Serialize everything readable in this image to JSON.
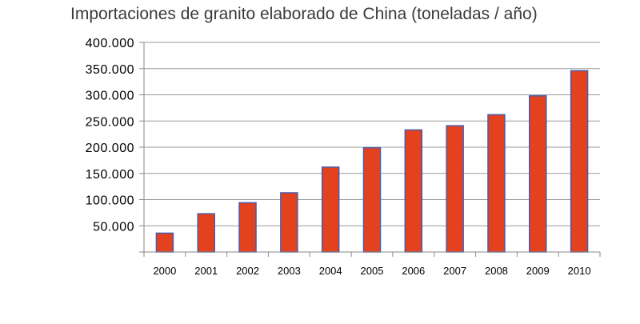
{
  "chart_data": {
    "type": "bar",
    "title": "Importaciones de granito elaborado de China (toneladas / año)",
    "xlabel": "",
    "ylabel": "",
    "categories": [
      "2000",
      "2001",
      "2002",
      "2003",
      "2004",
      "2005",
      "2006",
      "2007",
      "2008",
      "2009",
      "2010"
    ],
    "values": [
      36000,
      73000,
      94000,
      113000,
      162000,
      199000,
      233000,
      241000,
      262000,
      298000,
      346000
    ],
    "ylim": [
      0,
      400000
    ],
    "yticks": [
      50000,
      100000,
      150000,
      200000,
      250000,
      300000,
      350000,
      400000
    ],
    "ytick_labels": [
      "50.000",
      "100.000",
      "150.000",
      "200.000",
      "250.000",
      "300.000",
      "350.000",
      "400.000"
    ],
    "grid": true,
    "legend": "none",
    "colors": {
      "bar_fill": "#e4411f",
      "bar_stroke": "#4a5ca8",
      "grid": "#9a9a9a",
      "axis": "#8a8a8a"
    }
  }
}
